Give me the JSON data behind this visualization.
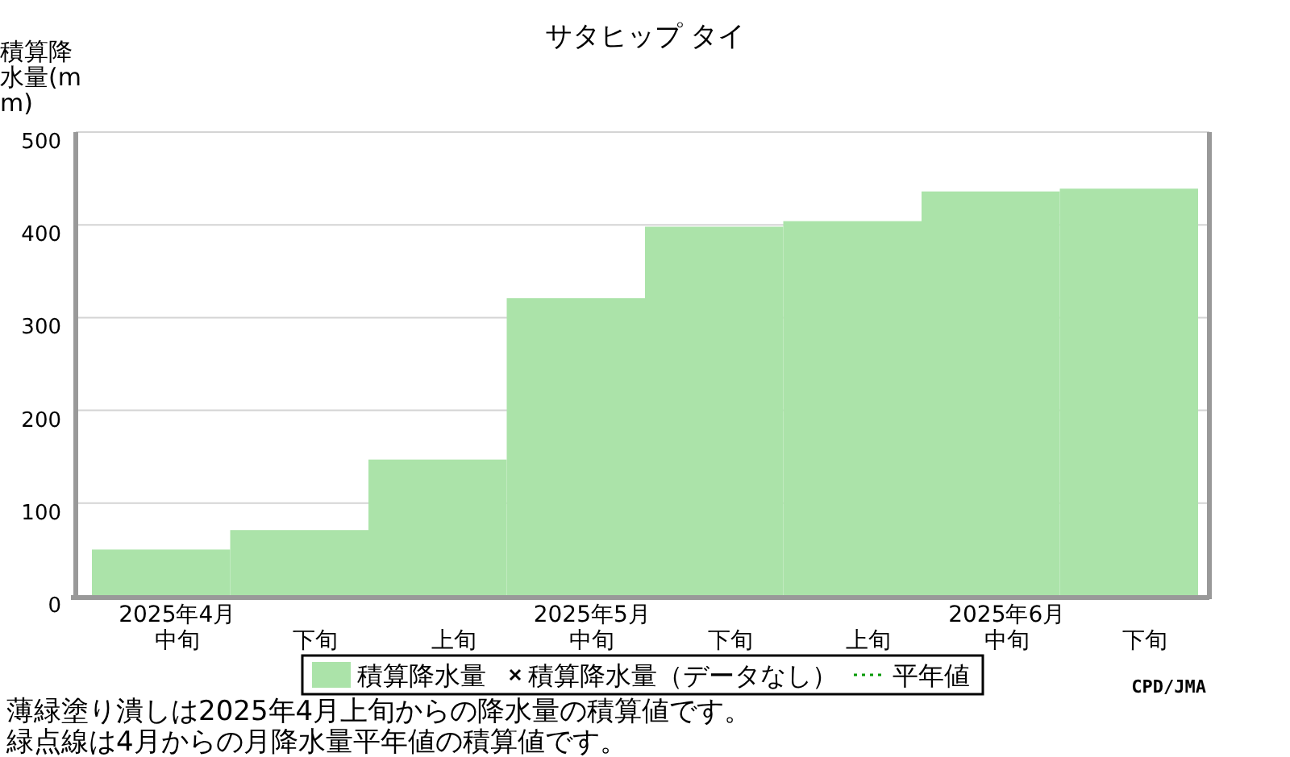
{
  "chart_data": {
    "type": "bar",
    "title": "サタヒップ タイ",
    "ylabel": "積算降水量(mm)",
    "categories": [
      "2025年4月中旬",
      "下旬",
      "上旬",
      "2025年5月中旬",
      "下旬",
      "上旬",
      "2025年6月中旬",
      "下旬"
    ],
    "series": [
      {
        "name": "積算降水量",
        "color": "#abe3a9",
        "values": [
          50,
          71,
          147,
          321,
          398,
          404,
          436,
          439
        ]
      },
      {
        "name": "積算降水量（データなし）",
        "type": "scatter",
        "marker": "cross",
        "color": "#000000",
        "values": [
          null,
          null,
          null,
          null,
          null,
          null,
          null,
          null
        ]
      },
      {
        "name": "平年値",
        "type": "line",
        "line_style": "dotted",
        "color": "#009900",
        "values": [
          null,
          null,
          null,
          null,
          null,
          null,
          null,
          null
        ]
      }
    ],
    "ylim": [
      0,
      500
    ],
    "yticks": [
      0,
      100,
      200,
      300,
      400,
      500
    ],
    "grid": "y",
    "legend": "bottom",
    "annotations": [
      "CPD/JMA",
      "薄緑塗り潰しは2025年4月上旬からの降水量の積算値です。",
      "緑点線は4月からの月降水量平年値の積算値です。"
    ]
  }
}
